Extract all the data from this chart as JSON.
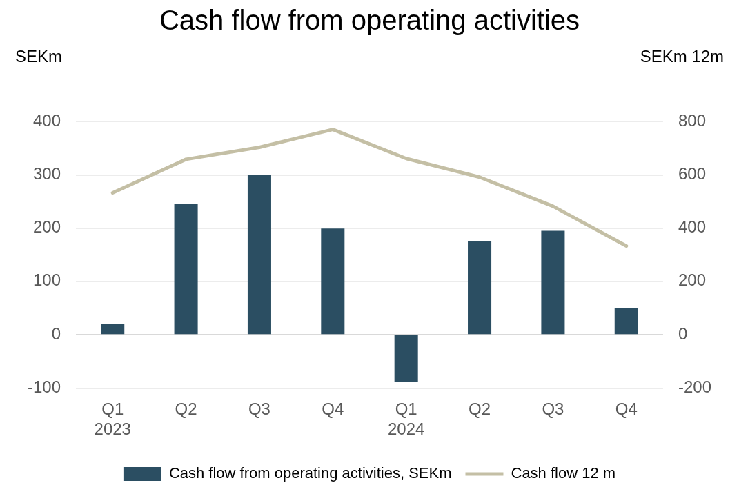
{
  "chart_data": {
    "type": "bar",
    "title": "Cash flow from operating activities",
    "ylabel": "SEKm",
    "y2label": "SEKm 12m",
    "categories": [
      "Q1\n2023",
      "Q2",
      "Q3",
      "Q4",
      "Q1\n2024",
      "Q2",
      "Q3",
      "Q4"
    ],
    "series": [
      {
        "name": "Cash flow from operating activities, SEKm",
        "color": "#2b4e62",
        "values": [
          20,
          246,
          300,
          199,
          -88,
          175,
          195,
          50
        ]
      },
      {
        "name": "Cash flow 12 m",
        "type": "line",
        "axis": "y2",
        "color": "#c4bfa5",
        "values": [
          532,
          658,
          703,
          770,
          661,
          591,
          482,
          333
        ]
      }
    ],
    "ylim": [
      -100,
      400
    ],
    "yticks": [
      -100,
      0,
      100,
      200,
      300,
      400
    ],
    "y2lim": [
      -200,
      800
    ],
    "y2ticks": [
      -200,
      0,
      200,
      400,
      600,
      800
    ],
    "grid": "y",
    "legend": "bottom",
    "marker": "none"
  }
}
